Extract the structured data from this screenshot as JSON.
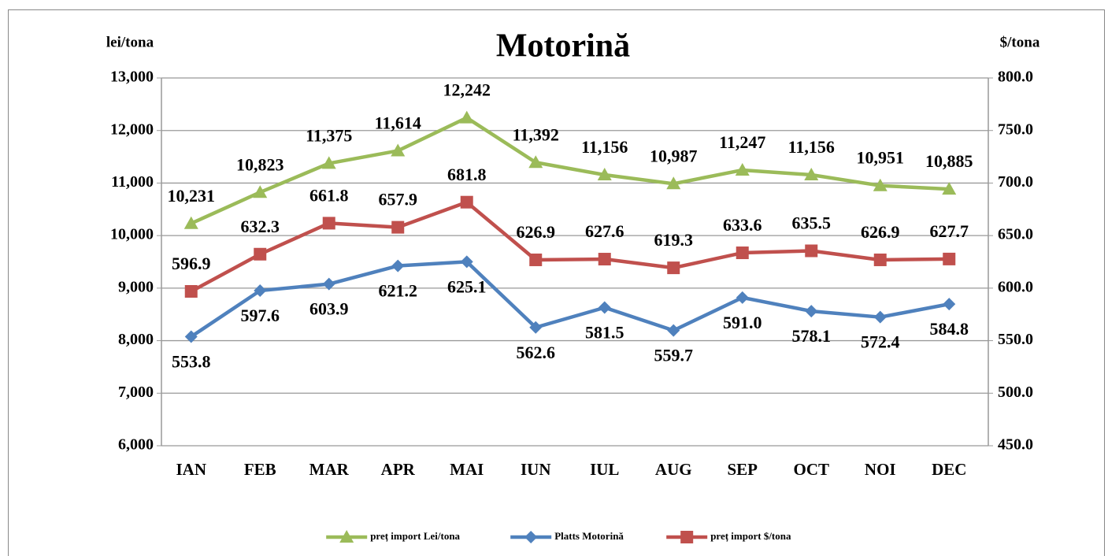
{
  "chart_data": {
    "type": "line",
    "title": "Motorină",
    "y_label": "lei/tona",
    "y2_label": "$/tona",
    "categories": [
      "IAN",
      "FEB",
      "MAR",
      "APR",
      "MAI",
      "IUN",
      "IUL",
      "AUG",
      "SEP",
      "OCT",
      "NOI",
      "DEC"
    ],
    "ylim": [
      6000,
      13000
    ],
    "yticks": [
      {
        "value": 6000,
        "label": "6,000"
      },
      {
        "value": 7000,
        "label": "7,000"
      },
      {
        "value": 8000,
        "label": "8,000"
      },
      {
        "value": 9000,
        "label": "9,000"
      },
      {
        "value": 10000,
        "label": "10,000"
      },
      {
        "value": 11000,
        "label": "11,000"
      },
      {
        "value": 12000,
        "label": "12,000"
      },
      {
        "value": 13000,
        "label": "13,000"
      }
    ],
    "y2lim": [
      450,
      800
    ],
    "y2ticks": [
      {
        "value": 450,
        "label": "450.0"
      },
      {
        "value": 500,
        "label": "500.0"
      },
      {
        "value": 550,
        "label": "550.0"
      },
      {
        "value": 600,
        "label": "600.0"
      },
      {
        "value": 650,
        "label": "650.0"
      },
      {
        "value": 700,
        "label": "700.0"
      },
      {
        "value": 750,
        "label": "750.0"
      },
      {
        "value": 800,
        "label": "800.0"
      }
    ],
    "grid": true,
    "legend": "bottom",
    "series": [
      {
        "name": "preț import Lei/tona",
        "color": "#9bbb59",
        "marker": "triangle",
        "label_position": "above",
        "values": [
          10231,
          10823,
          11375,
          11614,
          12242,
          11392,
          11156,
          10987,
          11247,
          11156,
          10951,
          10885
        ],
        "value_labels": [
          "10,231",
          "10,823",
          "11,375",
          "11,614",
          "12,242",
          "11,392",
          "11,156",
          "10,987",
          "11,247",
          "11,156",
          "10,951",
          "10,885"
        ]
      },
      {
        "name": "Platts Motorină",
        "color": "#4f81bd",
        "marker": "diamond",
        "axis": "y2",
        "label_position": "below",
        "values": [
          553.8,
          597.6,
          603.9,
          621.2,
          625.1,
          562.6,
          581.5,
          559.7,
          591.0,
          578.1,
          572.4,
          584.8
        ],
        "value_labels": [
          "553.8",
          "597.6",
          "603.9",
          "621.2",
          "625.1",
          "562.6",
          "581.5",
          "559.7",
          "591.0",
          "578.1",
          "572.4",
          "584.8"
        ]
      },
      {
        "name": "preț import $/tona",
        "color": "#c0504d",
        "marker": "square",
        "axis": "y2",
        "label_position": "above",
        "values": [
          596.9,
          632.3,
          661.8,
          657.9,
          681.8,
          626.9,
          627.6,
          619.3,
          633.6,
          635.5,
          626.9,
          627.7
        ],
        "value_labels": [
          "596.9",
          "632.3",
          "661.8",
          "657.9",
          "681.8",
          "626.9",
          "627.6",
          "619.3",
          "633.6",
          "635.5",
          "626.9",
          "627.7"
        ]
      }
    ]
  }
}
